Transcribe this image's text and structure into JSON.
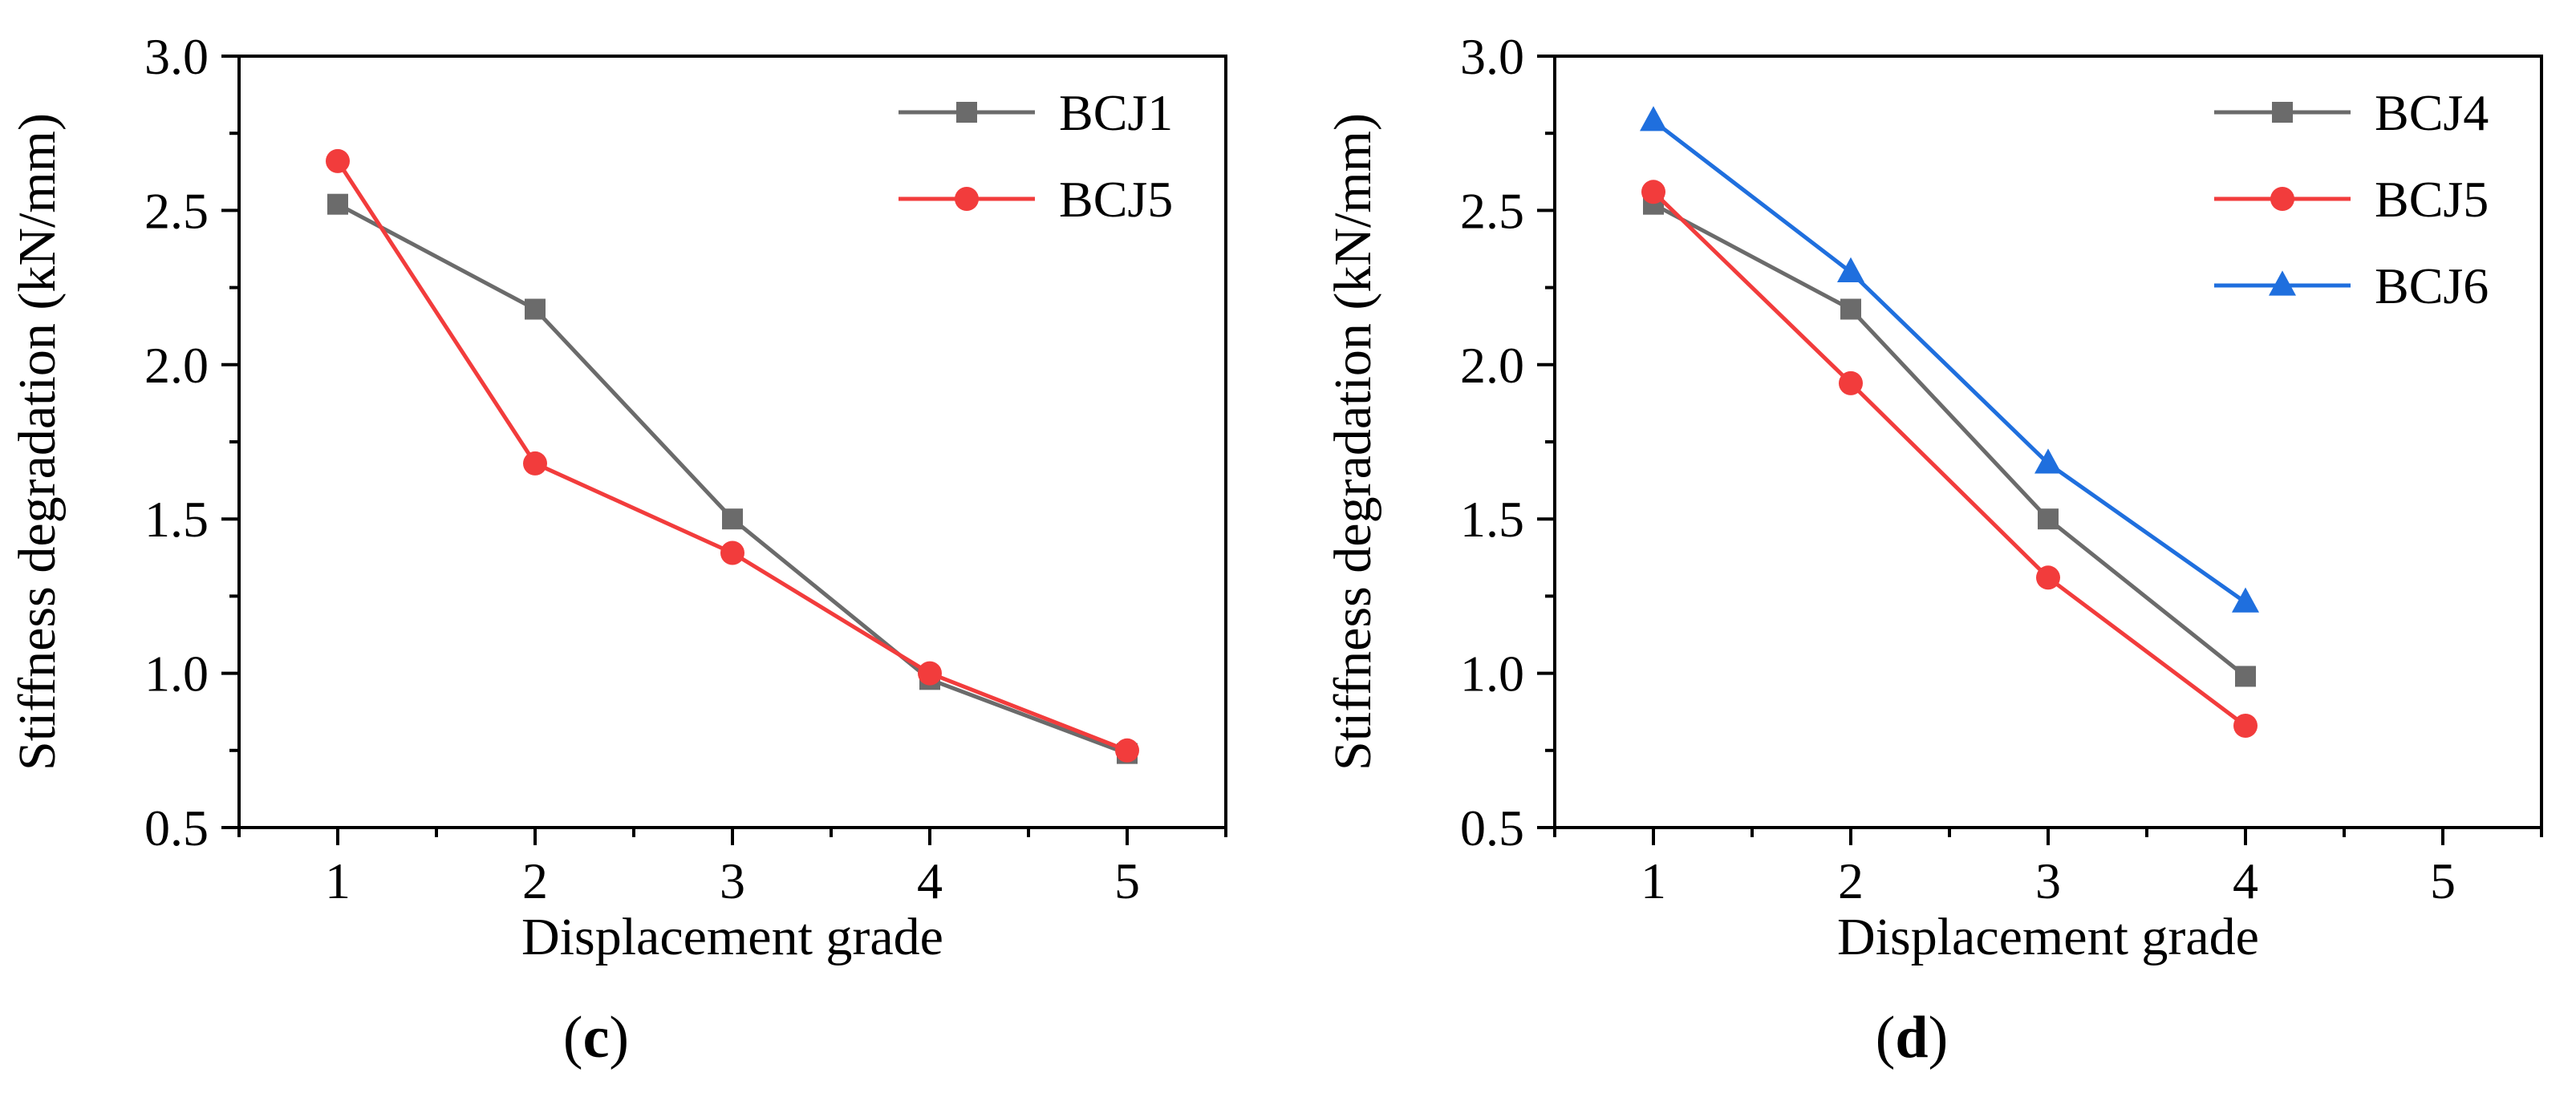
{
  "chart_data": [
    {
      "type": "line",
      "panel": "c",
      "caption": {
        "open": "(",
        "letter": "c",
        "close": ")"
      },
      "xlabel": "Displacement grade",
      "ylabel": "Stiffness degradation (kN/mm)",
      "xlim": [
        0.5,
        5.5
      ],
      "ylim": [
        0.5,
        3.0
      ],
      "xticks": [
        1,
        2,
        3,
        4,
        5
      ],
      "xtick_labels": [
        "1",
        "2",
        "3",
        "4",
        "5"
      ],
      "yticks": [
        0.5,
        1.0,
        1.5,
        2.0,
        2.5,
        3.0
      ],
      "ytick_labels": [
        "0.5",
        "1.0",
        "1.5",
        "2.0",
        "2.5",
        "3.0"
      ],
      "legend_position": "top-right",
      "series": [
        {
          "name": "BCJ1",
          "color": "#6b6b6b",
          "marker": "square",
          "x": [
            1,
            2,
            3,
            4,
            5
          ],
          "values": [
            2.52,
            2.18,
            1.5,
            0.98,
            0.74
          ]
        },
        {
          "name": "BCJ5",
          "color": "#f23c3c",
          "marker": "circle",
          "x": [
            1,
            2,
            3,
            4,
            5
          ],
          "values": [
            2.66,
            1.68,
            1.39,
            1.0,
            0.75
          ]
        }
      ]
    },
    {
      "type": "line",
      "panel": "d",
      "caption": {
        "open": "(",
        "letter": "d",
        "close": ")"
      },
      "xlabel": "Displacement grade",
      "ylabel": "Stiffness degradation (kN/mm)",
      "xlim": [
        0.5,
        5.5
      ],
      "ylim": [
        0.5,
        3.0
      ],
      "xticks": [
        1,
        2,
        3,
        4,
        5
      ],
      "xtick_labels": [
        "1",
        "2",
        "3",
        "4",
        "5"
      ],
      "yticks": [
        0.5,
        1.0,
        1.5,
        2.0,
        2.5,
        3.0
      ],
      "ytick_labels": [
        "0.5",
        "1.0",
        "1.5",
        "2.0",
        "2.5",
        "3.0"
      ],
      "legend_position": "top-right",
      "series": [
        {
          "name": "BCJ4",
          "color": "#6b6b6b",
          "marker": "square",
          "x": [
            1,
            2,
            3,
            4
          ],
          "values": [
            2.52,
            2.18,
            1.5,
            0.99
          ]
        },
        {
          "name": "BCJ5",
          "color": "#f23c3c",
          "marker": "circle",
          "x": [
            1,
            2,
            3,
            4
          ],
          "values": [
            2.56,
            1.94,
            1.31,
            0.83
          ]
        },
        {
          "name": "BCJ6",
          "color": "#1f6fde",
          "marker": "triangle",
          "x": [
            1,
            2,
            3,
            4
          ],
          "values": [
            2.79,
            2.3,
            1.68,
            1.23
          ]
        }
      ]
    }
  ]
}
